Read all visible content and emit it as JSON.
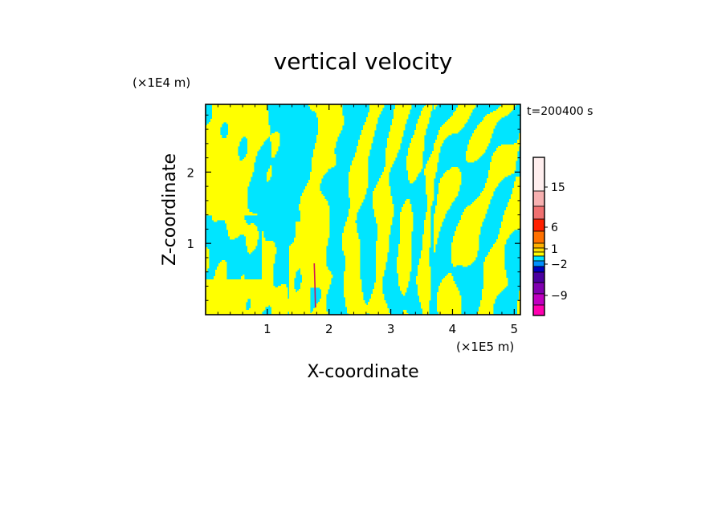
{
  "chart_data": {
    "type": "heatmap",
    "title": "vertical velocity",
    "xlabel": "X-coordinate",
    "ylabel": "Z-coordinate",
    "x_unit": "(×1E5 m)",
    "y_unit": "(×1E4 m)",
    "time_label": "t=200400 s",
    "xlim": [
      0,
      5.1
    ],
    "ylim": [
      0,
      2.95
    ],
    "x_ticks": [
      "1",
      "2",
      "3",
      "4",
      "5"
    ],
    "x_tick_values": [
      1,
      2,
      3,
      4,
      5
    ],
    "y_ticks": [
      "1",
      "2"
    ],
    "y_tick_values": [
      1,
      2
    ],
    "field_colors": {
      "positive": "#ffff00",
      "negative": "#00e5ff",
      "spike": "#d0105a"
    },
    "colorbar": {
      "labels": [
        "15",
        "6",
        "1",
        "−2",
        "−9"
      ],
      "label_values": [
        15,
        6,
        1,
        -2,
        -9
      ],
      "colors_top_to_bottom": [
        "#ffeeee",
        "#f7b0b0",
        "#f07070",
        "#ff2000",
        "#ff7000",
        "#ffb000",
        "#ffe000",
        "#ffff00",
        "#00e5ff",
        "#0090ff",
        "#0000c0",
        "#4a00a0",
        "#8000b0",
        "#c000c0",
        "#ff00b0"
      ]
    }
  }
}
